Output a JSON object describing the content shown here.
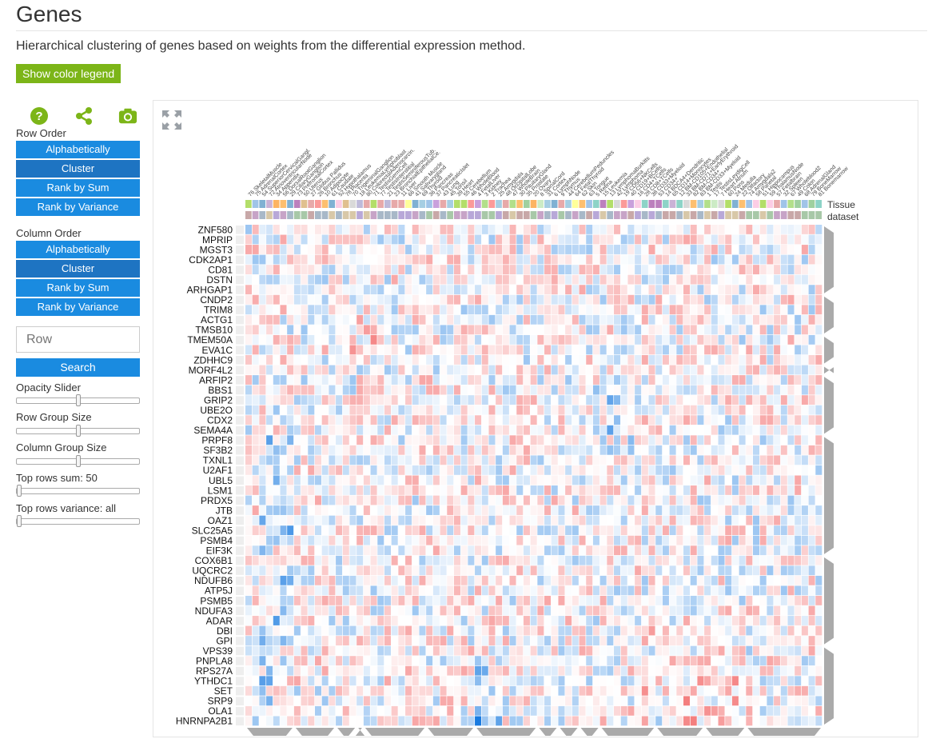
{
  "page": {
    "title": "Genes",
    "subtitle": "Hierarchical clustering of genes based on weights from the differential expression method.",
    "legend_button": "Show color legend"
  },
  "sidebar": {
    "icons": [
      "help-icon",
      "share-icon",
      "camera-icon"
    ],
    "row_order": {
      "label": "Row Order",
      "buttons": [
        "Alphabetically",
        "Cluster",
        "Rank by Sum",
        "Rank by Variance"
      ],
      "active": "Cluster"
    },
    "column_order": {
      "label": "Column Order",
      "buttons": [
        "Alphabetically",
        "Cluster",
        "Rank by Sum",
        "Rank by Variance"
      ],
      "active": "Cluster"
    },
    "search": {
      "placeholder": "Row",
      "button": "Search"
    },
    "sliders": {
      "opacity": {
        "label": "Opacity Slider",
        "value": 0.5
      },
      "row_group": {
        "label": "Row Group Size",
        "value": 0.5
      },
      "column_group": {
        "label": "Column Group Size",
        "value": 0.5
      },
      "top_rows_sum": {
        "label": "Top rows sum: 50",
        "value": 0.0
      },
      "top_rows_variance": {
        "label": "Top rows variance: all",
        "value": 0.0
      }
    }
  },
  "heatmap": {
    "category_labels": [
      "Tissue",
      "dataset"
    ],
    "colors": {
      "positive": "#ee3333",
      "negative": "#1a7be0",
      "neutral": "#ffffff",
      "dendro": "#aaaaaa"
    },
    "rows": [
      "ZNF580",
      "MPRIP",
      "MGST3",
      "CDK2AP1",
      "CD81",
      "DSTN",
      "ARHGAP1",
      "CNDP2",
      "TRIM8",
      "ACTG1",
      "TMSB10",
      "TMEM50A",
      "EVA1C",
      "ZDHHC9",
      "MORF4L2",
      "ARFIP2",
      "BBS1",
      "GRIP2",
      "UBE2O",
      "CDX2",
      "SEMA4A",
      "PRPF8",
      "SF3B2",
      "TXNL1",
      "U2AF1",
      "UBL5",
      "LSM1",
      "PRDX5",
      "JTB",
      "OAZ1",
      "SLC25A5",
      "PSMB4",
      "EIF3K",
      "COX6B1",
      "UQCRC2",
      "NDUFB6",
      "ATP5J",
      "PSMB5",
      "NDUFA3",
      "ADAR",
      "DBI",
      "GPI",
      "VPS39",
      "PNPLA8",
      "RPS27A",
      "YTHDC1",
      "SET",
      "SRP9",
      "OLA1",
      "HNRNPA2B1"
    ],
    "columns": [
      "76 SkeletalMuscle",
      "75 AdrenalCortex",
      "54 SuperiorCervicalGangl.",
      "72 AtrioventricularNode",
      "34 Appendix",
      "56 DorsalRootGanglion",
      "29 CiliaryGanglion",
      "73 PrefrontalCortex",
      "50 Uterus",
      "27 Globus Pallidus",
      "26 Bronchus",
      "10 Adipocyte",
      "61 Caudate",
      "52 Hypothalamus",
      "78 Placenta",
      "70 TrigeminalGanglion",
      "18 LeukemiaLymphoblast",
      "80 ColorectalAdenocarcin.",
      "71 TestisGermCell",
      "77 TestisInterstitial",
      "21 TestisSeminiferousTub.",
      "23 BronchialEpithelialCe.",
      "11 Liver",
      "66 Smooth Muscle",
      "41 Salivarygland",
      "69 Thyroid",
      "36 Pancreas",
      "37 PancreaticIslet",
      "43 Lung",
      "45 Tonsil",
      "39 Heart",
      "55 Cerebellum",
      "46 WholeBlood",
      "4 FetalLiver",
      "3 Kidney",
      "2 Trachea",
      "25 Amygdala",
      "48 OccipitalLobe",
      "47 WholeBrain",
      "30 PituitaryGland",
      "35 Prostate",
      "20 Ovary",
      "8 SpinalCord",
      "31 Cortex",
      "6 LymphNode",
      "9 Thymus",
      "44 CerebellumPeduncles",
      "64 FetalThyroid",
      "62 Skin",
      "63 Tongue",
      "5 Retina",
      "15 Leukemia",
      "13 LymphomaBurkitts",
      "42 Lymphoma",
      "19 CD56+NKCells",
      "40 CD19+BCells",
      "16 CD4+TCells",
      "28 CD8+TCells",
      "38 CD33+Myeloid",
      "53 CD34+",
      "14 BDCA4+Dendritic",
      "65 CD14+Monocytes",
      "12 BM-CD105+Endothelial",
      "33 BM-CD71+EarlyErythroid",
      "82 BM-CD34+",
      "83 BM-CD33+Myeloid",
      "1 Testis",
      "17 TestisLeydigCell",
      "7 Heart Atrium",
      "60 Pons",
      "24 Medulla",
      "22 Olfactory",
      "74 Amygdala2",
      "58 Parietal",
      "51 Hippocampus",
      "59 ThalamusNode",
      "57 Fetalbrain",
      "32 Spleen",
      "67 Wholeblood2",
      "49 Colon",
      "68 AdrenalGland",
      "79 BoneMarrow",
      "81 Bonemarrow"
    ]
  }
}
